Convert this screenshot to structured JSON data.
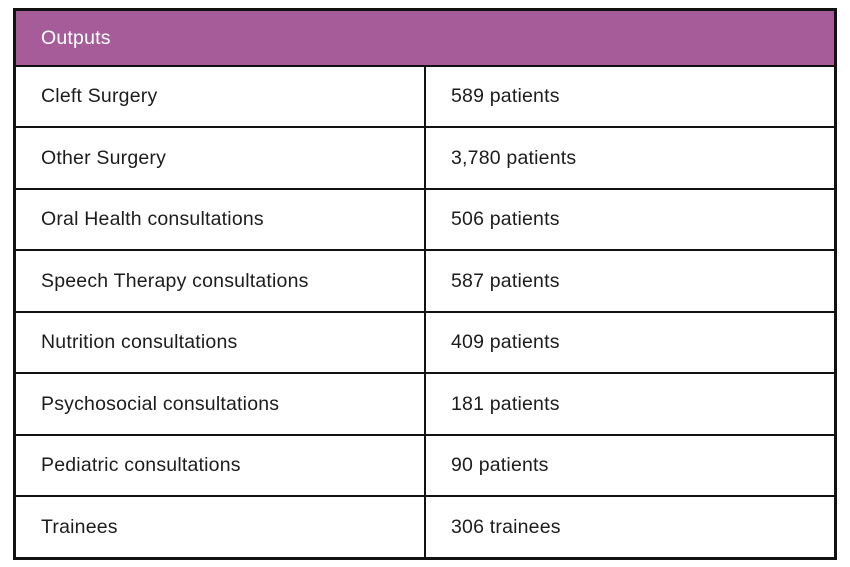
{
  "colors": {
    "header_bg": "#a55c99",
    "header_text": "#ffffff",
    "border": "#121212",
    "body_text": "#1c1c1c",
    "page_bg": "#ffffff"
  },
  "table": {
    "header": "Outputs",
    "rows": [
      {
        "label": "Cleft Surgery",
        "value": "589 patients"
      },
      {
        "label": "Other Surgery",
        "value": "3,780 patients"
      },
      {
        "label": "Oral Health consultations",
        "value": "506 patients"
      },
      {
        "label": "Speech Therapy consultations",
        "value": "587 patients"
      },
      {
        "label": "Nutrition consultations",
        "value": "409 patients"
      },
      {
        "label": "Psychosocial consultations",
        "value": "181 patients"
      },
      {
        "label": "Pediatric consultations",
        "value": "90 patients"
      },
      {
        "label": "Trainees",
        "value": "306 trainees"
      }
    ]
  },
  "chart_data": {
    "type": "table",
    "title": "Outputs",
    "categories": [
      "Cleft Surgery",
      "Other Surgery",
      "Oral Health consultations",
      "Speech Therapy consultations",
      "Nutrition consultations",
      "Psychosocial consultations",
      "Pediatric consultations",
      "Trainees"
    ],
    "values": [
      589,
      3780,
      506,
      587,
      409,
      181,
      90,
      306
    ],
    "units": [
      "patients",
      "patients",
      "patients",
      "patients",
      "patients",
      "patients",
      "patients",
      "trainees"
    ]
  }
}
